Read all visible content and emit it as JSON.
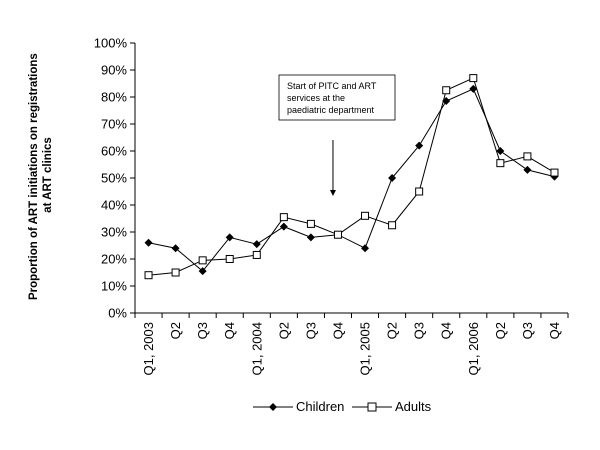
{
  "chart_data": {
    "type": "line",
    "title": "",
    "xlabel": "",
    "ylabel": "Proportion of ART initiations on registrations at ART clinics",
    "ylabel_lines": [
      "Proportion of ART initiations on registrations",
      "at ART clinics"
    ],
    "categories": [
      "Q1, 2003",
      "Q2",
      "Q3",
      "Q4",
      "Q1, 2004",
      "Q2",
      "Q3",
      "Q4",
      "Q1, 2005",
      "Q2",
      "Q3",
      "Q4",
      "Q1, 2006",
      "Q2",
      "Q3",
      "Q4"
    ],
    "ylim": [
      0,
      100
    ],
    "yticks": [
      "0%",
      "10%",
      "20%",
      "30%",
      "40%",
      "50%",
      "60%",
      "70%",
      "80%",
      "90%",
      "100%"
    ],
    "grid": false,
    "legend_position": "bottom",
    "series": [
      {
        "name": "Children",
        "marker": "diamond",
        "color": "#000000",
        "values": [
          26,
          24,
          15.5,
          28,
          25.5,
          32,
          28,
          29,
          24,
          50,
          62,
          78.5,
          83,
          60,
          53,
          50.5
        ]
      },
      {
        "name": "Adults",
        "marker": "square",
        "color": "#000000",
        "values": [
          14,
          15,
          19.5,
          20,
          21.5,
          35.5,
          33,
          29,
          36,
          32.5,
          45,
          82.5,
          87,
          55.5,
          58,
          52
        ]
      }
    ],
    "annotation": {
      "lines": [
        "Start of PITC and ART",
        "services at the",
        "paediatric department"
      ],
      "category_index": 7
    }
  }
}
